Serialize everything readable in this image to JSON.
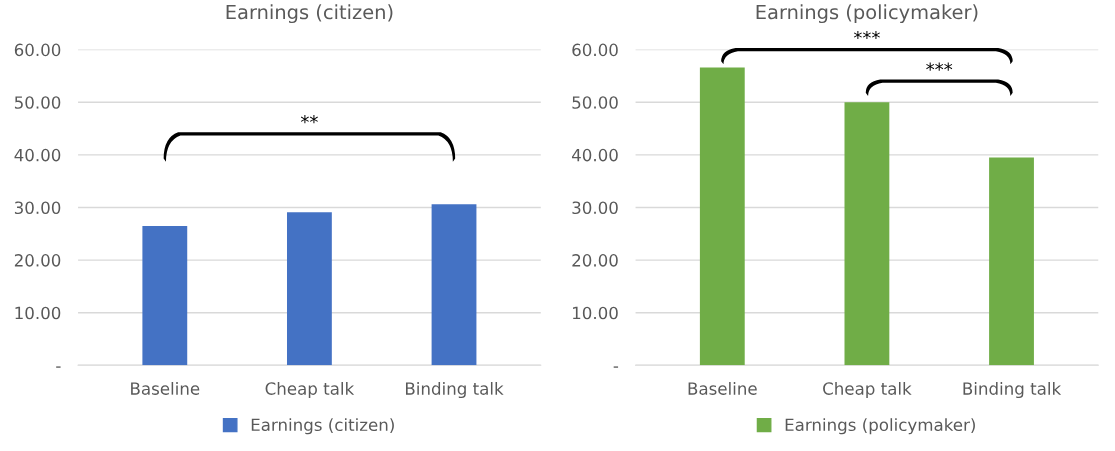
{
  "chart_data": [
    {
      "type": "bar",
      "title": "Earnings (citizen)",
      "categories": [
        "Baseline",
        "Cheap talk",
        "Binding talk"
      ],
      "series": [
        {
          "name": "Earnings (citizen)",
          "color": "#4472c4",
          "values": [
            26.5,
            29.1,
            30.6
          ]
        }
      ],
      "ylim": [
        0,
        60
      ],
      "yticks": [
        {
          "value": 0,
          "label": "-"
        },
        {
          "value": 10,
          "label": "10.00"
        },
        {
          "value": 20,
          "label": "20.00"
        },
        {
          "value": 30,
          "label": "30.00"
        },
        {
          "value": 40,
          "label": "40.00"
        },
        {
          "value": 50,
          "label": "50.00"
        },
        {
          "value": 60,
          "label": "60.00"
        }
      ],
      "grid": "y",
      "legend": "bottom",
      "annotations": [
        "**"
      ]
    },
    {
      "type": "bar",
      "title": "Earnings (policymaker)",
      "categories": [
        "Baseline",
        "Cheap talk",
        "Binding talk"
      ],
      "series": [
        {
          "name": "Earnings (policymaker)",
          "color": "#70ad47",
          "values": [
            56.6,
            50.0,
            39.5
          ]
        }
      ],
      "ylim": [
        0,
        60
      ],
      "yticks": [
        {
          "value": 0,
          "label": "-"
        },
        {
          "value": 10,
          "label": "10.00"
        },
        {
          "value": 20,
          "label": "20.00"
        },
        {
          "value": 30,
          "label": "30.00"
        },
        {
          "value": 40,
          "label": "40.00"
        },
        {
          "value": 50,
          "label": "50.00"
        },
        {
          "value": 60,
          "label": "60.00"
        }
      ],
      "grid": "y",
      "legend": "bottom",
      "annotations": [
        "***",
        "***"
      ]
    }
  ]
}
